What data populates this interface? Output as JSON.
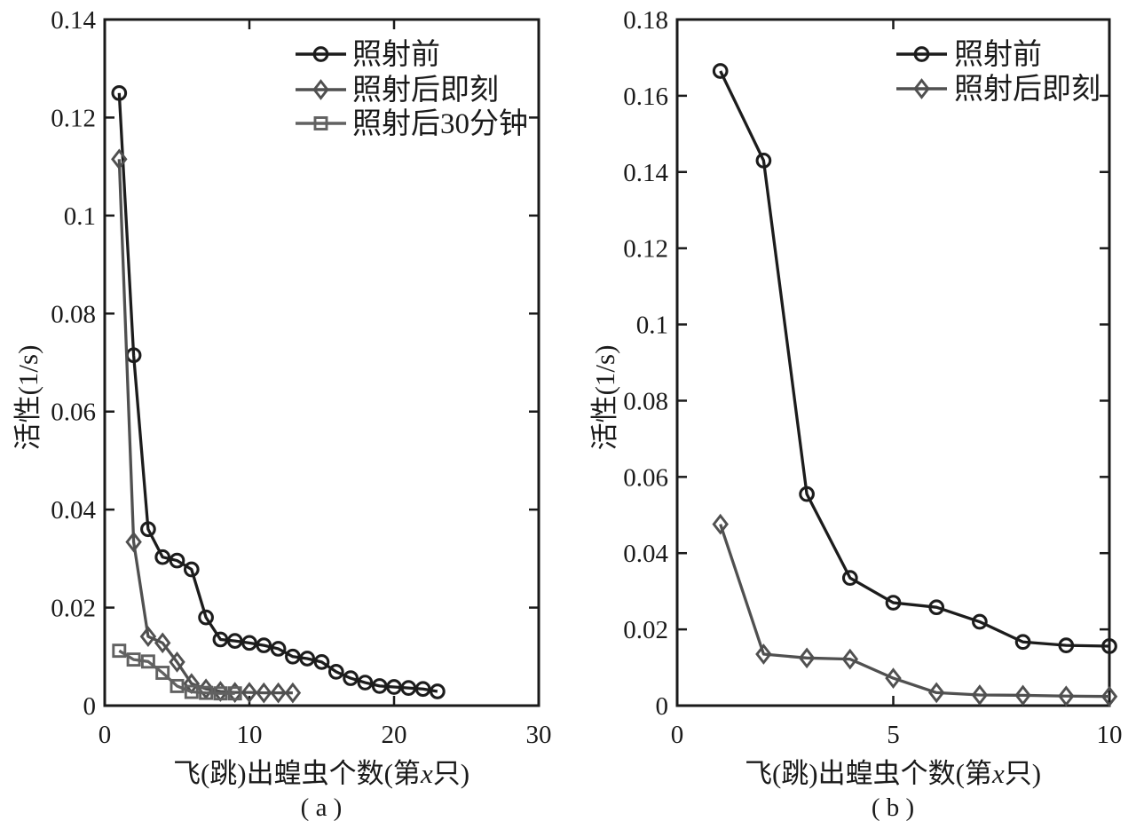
{
  "figure": {
    "background": "#ffffff",
    "text_color": "#1a1a1a",
    "axis_color": "#1a1a1a"
  },
  "chart_data": [
    {
      "type": "line",
      "panel_label": "( a )",
      "xlabel": "飞(跳)出蝗虫个数(第x只)",
      "xlabel_italic_char": "x",
      "ylabel": "活性(1/s)",
      "xlim": [
        0,
        30
      ],
      "ylim": [
        0,
        0.14
      ],
      "xticks": [
        0,
        10,
        20,
        30
      ],
      "xtick_labels": [
        "0",
        "10",
        "20",
        "30"
      ],
      "yticks": [
        0,
        0.02,
        0.04,
        0.06,
        0.08,
        0.1,
        0.12,
        0.14
      ],
      "ytick_labels": [
        "0",
        "0.02",
        "0.04",
        "0.06",
        "0.08",
        "0.1",
        "0.12",
        "0.14"
      ],
      "grid": false,
      "legend_position": "top-right-inside",
      "series": [
        {
          "name": "照射前",
          "marker": "circle",
          "color": "#1c1c1c",
          "x": [
            1,
            2,
            3,
            4,
            5,
            6,
            7,
            8,
            9,
            10,
            11,
            12,
            13,
            14,
            15,
            16,
            17,
            18,
            19,
            20,
            21,
            22,
            23
          ],
          "y": [
            0.125,
            0.0715,
            0.036,
            0.0303,
            0.0296,
            0.0278,
            0.018,
            0.0135,
            0.0132,
            0.0128,
            0.0123,
            0.0116,
            0.01,
            0.0096,
            0.0089,
            0.0069,
            0.0056,
            0.0047,
            0.004,
            0.0038,
            0.0036,
            0.0034,
            0.0029
          ]
        },
        {
          "name": "照射后即刻",
          "marker": "diamond",
          "color": "#505050",
          "x": [
            1,
            2,
            3,
            4,
            5,
            6,
            7,
            8,
            9,
            10,
            11,
            12,
            13
          ],
          "y": [
            0.1115,
            0.0334,
            0.0141,
            0.0128,
            0.0089,
            0.0045,
            0.0034,
            0.0029,
            0.0027,
            0.0027,
            0.0026,
            0.0026,
            0.0026
          ]
        },
        {
          "name": "照射后30分钟",
          "marker": "square",
          "color": "#616161",
          "x": [
            1,
            2,
            3,
            4,
            5,
            6,
            7,
            8,
            9
          ],
          "y": [
            0.0112,
            0.0094,
            0.009,
            0.0067,
            0.004,
            0.0028,
            0.0026,
            0.0025,
            0.0025
          ]
        }
      ]
    },
    {
      "type": "line",
      "panel_label": "( b )",
      "xlabel": "飞(跳)出蝗虫个数(第x只)",
      "xlabel_italic_char": "x",
      "ylabel": "活性(1/s)",
      "xlim": [
        0,
        10
      ],
      "ylim": [
        0,
        0.18
      ],
      "xticks": [
        0,
        5,
        10
      ],
      "xtick_labels": [
        "0",
        "5",
        "10"
      ],
      "yticks": [
        0,
        0.02,
        0.04,
        0.06,
        0.08,
        0.1,
        0.12,
        0.14,
        0.16,
        0.18
      ],
      "ytick_labels": [
        "0",
        "0.02",
        "0.04",
        "0.06",
        "0.08",
        "0.1",
        "0.12",
        "0.14",
        "0.16",
        "0.18"
      ],
      "grid": false,
      "legend_position": "top-right-inside",
      "series": [
        {
          "name": "照射前",
          "marker": "circle",
          "color": "#1c1c1c",
          "x": [
            1,
            2,
            3,
            4,
            5,
            6,
            7,
            8,
            9,
            10
          ],
          "y": [
            0.1665,
            0.143,
            0.0555,
            0.0335,
            0.027,
            0.0258,
            0.022,
            0.0167,
            0.0158,
            0.0156
          ]
        },
        {
          "name": "照射后即刻",
          "marker": "diamond",
          "color": "#505050",
          "x": [
            1,
            2,
            3,
            4,
            5,
            6,
            7,
            8,
            9,
            10
          ],
          "y": [
            0.0476,
            0.0135,
            0.0125,
            0.0122,
            0.0072,
            0.0034,
            0.0028,
            0.0027,
            0.0025,
            0.0024
          ]
        }
      ]
    }
  ]
}
